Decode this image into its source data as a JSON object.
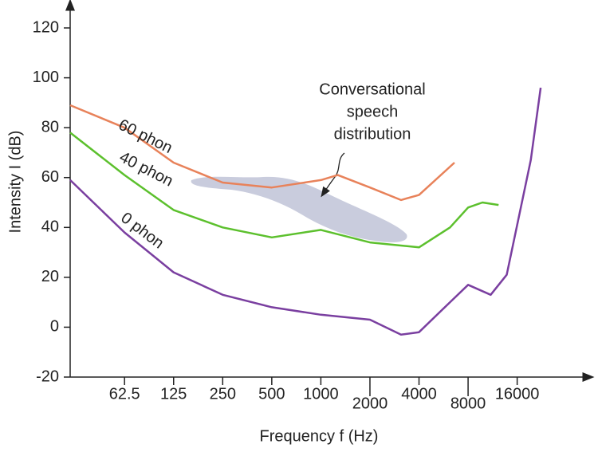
{
  "chart_data": {
    "type": "line",
    "x_label": "Frequency f (Hz)",
    "y_label": "Intensity I (dB)",
    "annotation": [
      "Conversational",
      "speech",
      "distribution"
    ],
    "xscale": "log",
    "xlim": [
      29,
      40000
    ],
    "xticks": [
      62.5,
      125,
      250,
      500,
      1000,
      2000,
      4000,
      8000,
      16000
    ],
    "ylim": [
      -20,
      128
    ],
    "yticks": [
      -20,
      0,
      20,
      40,
      60,
      80,
      100,
      120
    ],
    "grid": false,
    "series": [
      {
        "name": "60 phon",
        "color": "#e8825a",
        "x": [
          29,
          62.5,
          125,
          250,
          500,
          1000,
          1270,
          2000,
          3100,
          4000,
          6600
        ],
        "values": [
          89,
          80,
          66,
          58,
          56,
          59,
          61,
          56,
          51,
          53,
          66
        ]
      },
      {
        "name": "40 phon",
        "color": "#5cc02d",
        "x": [
          29,
          62.5,
          125,
          250,
          500,
          1000,
          2000,
          4000,
          6200,
          8000,
          9800,
          12300
        ],
        "values": [
          78,
          61,
          47,
          40,
          36,
          39,
          34,
          32,
          40,
          48,
          50,
          49
        ]
      },
      {
        "name": "0 phon",
        "color": "#7a3fa0",
        "x": [
          29,
          62.5,
          125,
          250,
          500,
          1000,
          2000,
          3100,
          4000,
          6200,
          8000,
          11000,
          13800,
          19400,
          22300
        ],
        "values": [
          59,
          38,
          22,
          13,
          8,
          5,
          3,
          -3,
          -2,
          10,
          17,
          13,
          21,
          67,
          96
        ]
      }
    ]
  }
}
